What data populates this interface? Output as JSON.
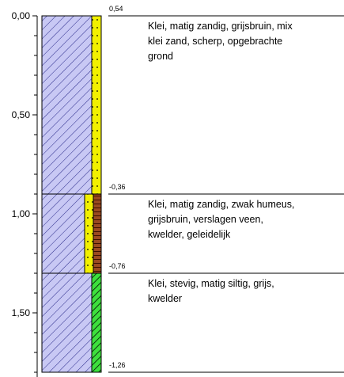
{
  "depth_axis": {
    "ticks": [
      "0,00",
      "0,50",
      "1,00",
      "1,50"
    ]
  },
  "levels": [
    "0,54",
    "-0,36",
    "-0,76",
    "-1,26"
  ],
  "layers": [
    {
      "description": [
        "Klei, matig zandig, grijsbruin, mix",
        "klei zand, scherp, opgebrachte",
        "grond"
      ]
    },
    {
      "description": [
        "Klei, matig zandig, zwak humeus,",
        "grijsbruin, verslagen veen,",
        "kwelder, geleidelijk"
      ]
    },
    {
      "description": [
        "Klei, stevig, matig siltig, grijs,",
        "kwelder"
      ]
    }
  ]
}
